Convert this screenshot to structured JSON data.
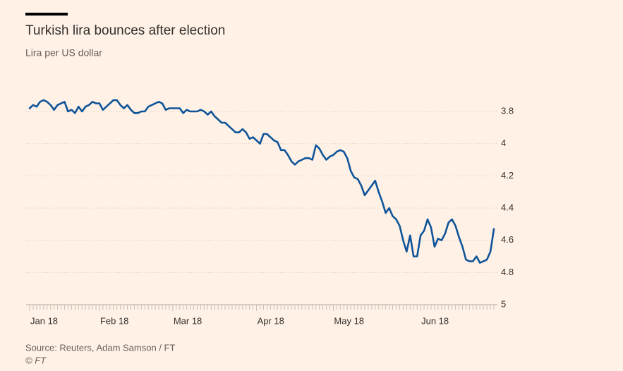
{
  "chart_data": {
    "type": "line",
    "title": "Turkish lira bounces after election",
    "subtitle": "Lira per US dollar",
    "source": "Source: Reuters, Adam Samson / FT",
    "copyright": "© FT",
    "categories": [
      "Jan 18",
      null,
      null,
      null,
      null,
      null,
      null,
      null,
      null,
      null,
      null,
      null,
      null,
      null,
      null,
      null,
      null,
      null,
      null,
      null,
      "Feb 18",
      null,
      null,
      null,
      null,
      null,
      null,
      null,
      null,
      null,
      null,
      null,
      null,
      null,
      null,
      null,
      null,
      null,
      null,
      null,
      null,
      "Mar 18",
      null,
      null,
      null,
      null,
      null,
      null,
      null,
      null,
      null,
      null,
      null,
      null,
      null,
      null,
      null,
      null,
      null,
      null,
      null,
      null,
      null,
      null,
      null,
      "Apr 18",
      null,
      null,
      null,
      null,
      null,
      null,
      null,
      null,
      null,
      null,
      null,
      null,
      null,
      null,
      null,
      null,
      null,
      null,
      null,
      null,
      null,
      "May 18",
      null,
      null,
      null,
      null,
      null,
      null,
      null,
      null,
      null,
      null,
      null,
      null,
      null,
      null,
      null,
      null,
      null,
      null,
      null,
      null,
      null,
      null,
      null,
      null,
      "Jun 18",
      null,
      null,
      null,
      null,
      null,
      null,
      null,
      null,
      null,
      null,
      null,
      null,
      null,
      null,
      null,
      null,
      null,
      null,
      null,
      null,
      null
    ],
    "series": [
      {
        "name": "Lira per US dollar",
        "color": "#0f5499",
        "values": [
          3.78,
          3.76,
          3.77,
          3.74,
          3.73,
          3.74,
          3.76,
          3.79,
          3.76,
          3.75,
          3.74,
          3.8,
          3.79,
          3.81,
          3.77,
          3.8,
          3.77,
          3.76,
          3.74,
          3.75,
          3.75,
          3.79,
          3.77,
          3.75,
          3.73,
          3.73,
          3.76,
          3.78,
          3.76,
          3.79,
          3.81,
          3.81,
          3.8,
          3.8,
          3.77,
          3.76,
          3.75,
          3.74,
          3.75,
          3.79,
          3.78,
          3.78,
          3.78,
          3.78,
          3.81,
          3.79,
          3.8,
          3.8,
          3.8,
          3.79,
          3.8,
          3.82,
          3.8,
          3.83,
          3.85,
          3.87,
          3.87,
          3.89,
          3.91,
          3.93,
          3.93,
          3.91,
          3.93,
          3.97,
          3.96,
          3.98,
          4.0,
          3.94,
          3.94,
          3.96,
          3.98,
          3.99,
          4.04,
          4.04,
          4.07,
          4.11,
          4.13,
          4.11,
          4.1,
          4.09,
          4.09,
          4.1,
          4.01,
          4.03,
          4.07,
          4.1,
          4.08,
          4.07,
          4.05,
          4.04,
          4.05,
          4.09,
          4.17,
          4.21,
          4.22,
          4.26,
          4.32,
          4.29,
          4.26,
          4.23,
          4.3,
          4.36,
          4.43,
          4.4,
          4.45,
          4.47,
          4.51,
          4.6,
          4.67,
          4.57,
          4.7,
          4.7,
          4.57,
          4.54,
          4.47,
          4.52,
          4.64,
          4.59,
          4.6,
          4.56,
          4.49,
          4.47,
          4.51,
          4.58,
          4.64,
          4.72,
          4.73,
          4.73,
          4.7,
          4.74,
          4.73,
          4.72,
          4.67,
          4.53
        ]
      }
    ],
    "ylim": [
      3.7,
      5
    ],
    "inverted": true,
    "yticks": [
      3.8,
      4,
      4.2,
      4.4,
      4.6,
      4.8,
      5
    ],
    "grid": true
  }
}
